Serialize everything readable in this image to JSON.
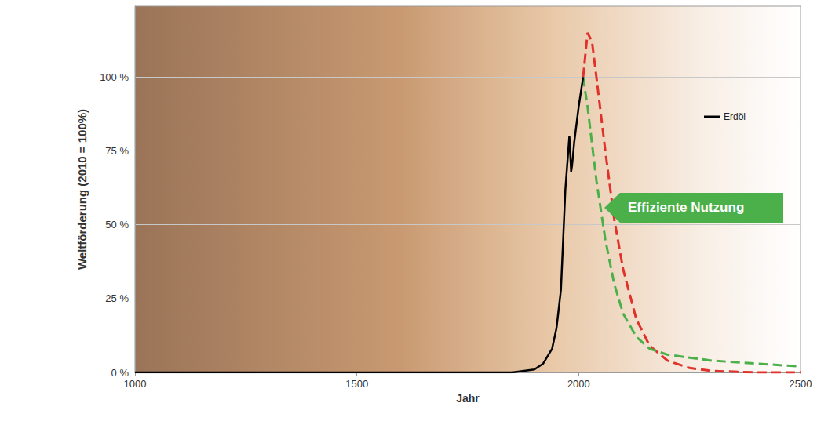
{
  "chart_data": {
    "type": "line",
    "x_label": "Jahr",
    "y_label": "Weltförderung (2010 = 100%)",
    "xlim": [
      1000,
      2500
    ],
    "xticks": [
      1000,
      1500,
      2000,
      2500
    ],
    "ylim": [
      0,
      124
    ],
    "yticks": [
      {
        "value": 0,
        "label": "0 %"
      },
      {
        "value": 25,
        "label": "25 %"
      },
      {
        "value": 50,
        "label": "50 %"
      },
      {
        "value": 75,
        "label": "75 %"
      },
      {
        "value": 100,
        "label": "100 %"
      }
    ],
    "grid": true,
    "legend": "upper right",
    "series": [
      {
        "name": "Erdöl",
        "color": "#000000",
        "line_style": "solid",
        "x": [
          1000,
          1850,
          1900,
          1920,
          1940,
          1950,
          1960,
          1970,
          1979,
          1983,
          1985,
          1990,
          2000,
          2010
        ],
        "values": [
          0,
          0,
          1,
          3,
          8,
          15,
          28,
          62,
          80,
          68,
          70,
          78,
          90,
          100
        ]
      },
      {
        "color": "#e0322a",
        "line_style": "dashed",
        "x": [
          2010,
          2020,
          2030,
          2040,
          2060,
          2080,
          2100,
          2130,
          2160,
          2200,
          2250,
          2300,
          2400,
          2500
        ],
        "values": [
          100,
          115,
          112,
          100,
          75,
          52,
          35,
          18,
          9,
          4,
          1.5,
          0.5,
          0,
          0
        ]
      },
      {
        "color": "#4cb04a",
        "line_style": "dashed",
        "x": [
          2010,
          2020,
          2040,
          2060,
          2080,
          2100,
          2130,
          2160,
          2200,
          2300,
          2400,
          2500
        ],
        "values": [
          100,
          90,
          65,
          45,
          30,
          20,
          12,
          8,
          6,
          4,
          3,
          2
        ]
      }
    ],
    "annotation": {
      "text": "Effiziente Nutzung",
      "color": "#4cb04a"
    }
  }
}
